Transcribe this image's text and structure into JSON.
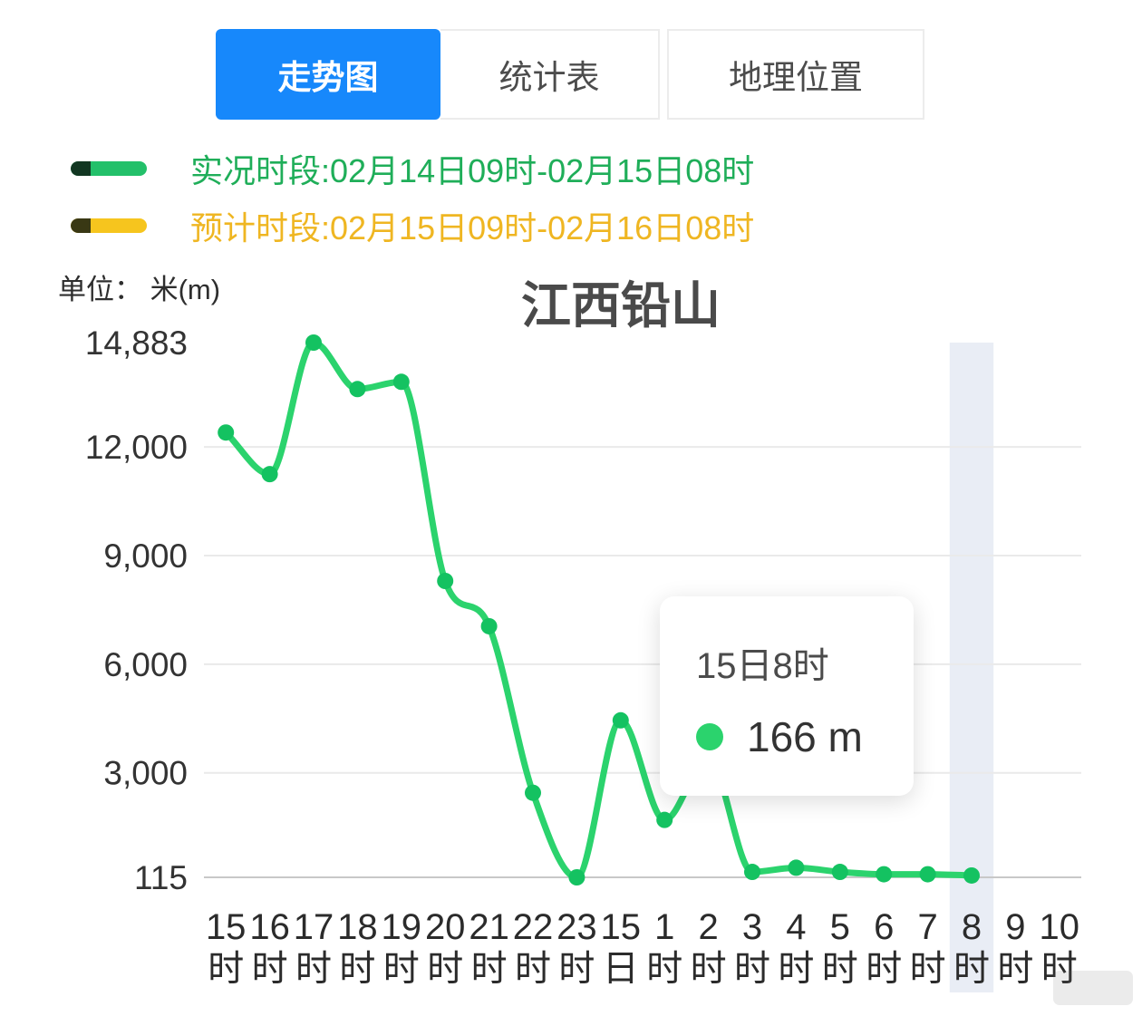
{
  "tabs": {
    "items": [
      {
        "label": "走势图",
        "active": true
      },
      {
        "label": "统计表",
        "active": false
      },
      {
        "label": "地理位置",
        "active": false
      }
    ]
  },
  "legend": {
    "actual": {
      "label": "实况时段:02月14日09时-02月15日08时",
      "color": "#23c06a",
      "text_color": "#1fae59"
    },
    "forecast": {
      "label": "预计时段:02月15日09时-02月16日08时",
      "color": "#f6c51e",
      "text_color": "#efb622"
    }
  },
  "unit_label": "单位：  米(m)",
  "tooltip": {
    "title": "15日8时",
    "value": "166 m",
    "dot_color": "#2bd36d"
  },
  "chart_data": {
    "type": "line",
    "title": "江西铅山",
    "xlabel": "",
    "ylabel": "米(m)",
    "categories": [
      "15时",
      "16时",
      "17时",
      "18时",
      "19时",
      "20时",
      "21时",
      "22时",
      "23时",
      "15日",
      "1时",
      "2时",
      "3时",
      "4时",
      "5时",
      "6时",
      "7时",
      "8时",
      "9时",
      "10时"
    ],
    "series": [
      {
        "name": "实况",
        "color": "#2bd36d",
        "point_color": "#14c261",
        "values": [
          12400,
          11250,
          14883,
          13600,
          13800,
          8300,
          7050,
          2450,
          115,
          4450,
          1700,
          3400,
          265,
          380,
          265,
          200,
          200,
          166,
          null,
          null
        ]
      }
    ],
    "ylim": [
      115,
      14883
    ],
    "y_ticks": [
      14883,
      12000,
      9000,
      6000,
      3000,
      115
    ],
    "y_tick_labels": [
      "14,883",
      "12,000",
      "9,000",
      "6,000",
      "3,000",
      "115"
    ],
    "grid": true,
    "legend_position": "top-left",
    "highlight_category": "8时",
    "highlight_color": "#e9edf5"
  }
}
